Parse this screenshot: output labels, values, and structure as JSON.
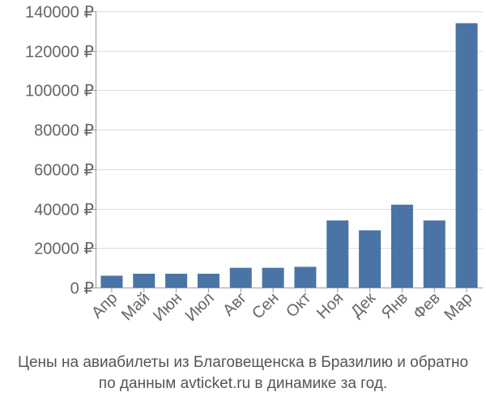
{
  "chart_data": {
    "type": "bar",
    "categories": [
      "Апр",
      "Май",
      "Июн",
      "Июл",
      "Авг",
      "Сен",
      "Окт",
      "Ноя",
      "Дек",
      "Янв",
      "Фев",
      "Мар"
    ],
    "values": [
      6000,
      7000,
      7000,
      7000,
      10000,
      10000,
      10500,
      34000,
      29000,
      42000,
      34000,
      134000
    ],
    "ylim": [
      0,
      140000
    ],
    "yticks": [
      0,
      20000,
      40000,
      60000,
      80000,
      100000,
      120000,
      140000
    ],
    "ytick_labels": [
      "0 ₽",
      "20000 ₽",
      "40000 ₽",
      "60000 ₽",
      "80000 ₽",
      "100000 ₽",
      "120000 ₽",
      "140000 ₽"
    ],
    "grid": true,
    "bar_color": "#4a74a5"
  },
  "caption": {
    "line1": "Цены на авиабилеты из Благовещенска в Бразилию и обратно",
    "line2": "по данным avticket.ru в динамике за год."
  }
}
